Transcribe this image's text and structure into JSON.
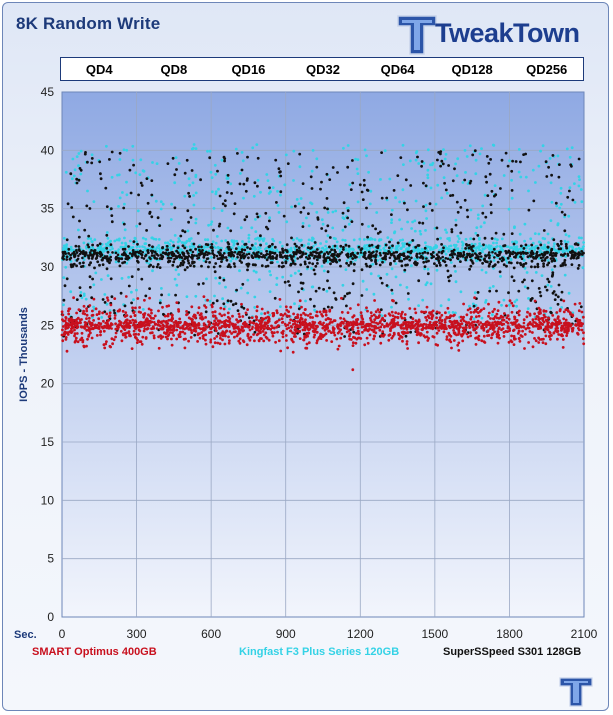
{
  "title": "8K Random Write",
  "brand": "TweakTown",
  "queue_depths": [
    "QD4",
    "QD8",
    "QD16",
    "QD32",
    "QD64",
    "QD128",
    "QD256"
  ],
  "colors": {
    "plot_top": "#8fa9e3",
    "plot_bottom": "#f2f5fc",
    "series_red": "#c8101e",
    "series_cyan": "#34d2e6",
    "series_black": "#111111",
    "title": "#1d3a7a"
  },
  "chart_data": {
    "type": "scatter",
    "title": "8K Random Write",
    "xlabel": "Sec.",
    "ylabel": "IOPS - Thousands",
    "xlim": [
      0,
      2100
    ],
    "ylim": [
      0,
      45
    ],
    "xticks": [
      0,
      300,
      600,
      900,
      1200,
      1500,
      1800,
      2100
    ],
    "yticks": [
      0,
      5,
      10,
      15,
      20,
      25,
      30,
      35,
      40,
      45
    ],
    "grid": true,
    "legend_position": "bottom",
    "series": [
      {
        "name": "SMART Optimus 400GB",
        "color": "#c8101e",
        "mean": 25.0,
        "spread_low": 23.0,
        "spread_high": 27.5,
        "outliers": [
          [
            1170,
            21.2
          ],
          [
            880,
            22.8
          ],
          [
            930,
            22.7
          ]
        ]
      },
      {
        "name": "Kingfast F3 Plus Series 120GB",
        "color": "#34d2e6",
        "mean": 31.5,
        "spread_low": 25.5,
        "spread_high": 40.5
      },
      {
        "name": "SuperSSpeed S301 128GB",
        "color": "#111111",
        "mean": 31.0,
        "spread_low": 24.0,
        "spread_high": 40.0
      }
    ]
  }
}
